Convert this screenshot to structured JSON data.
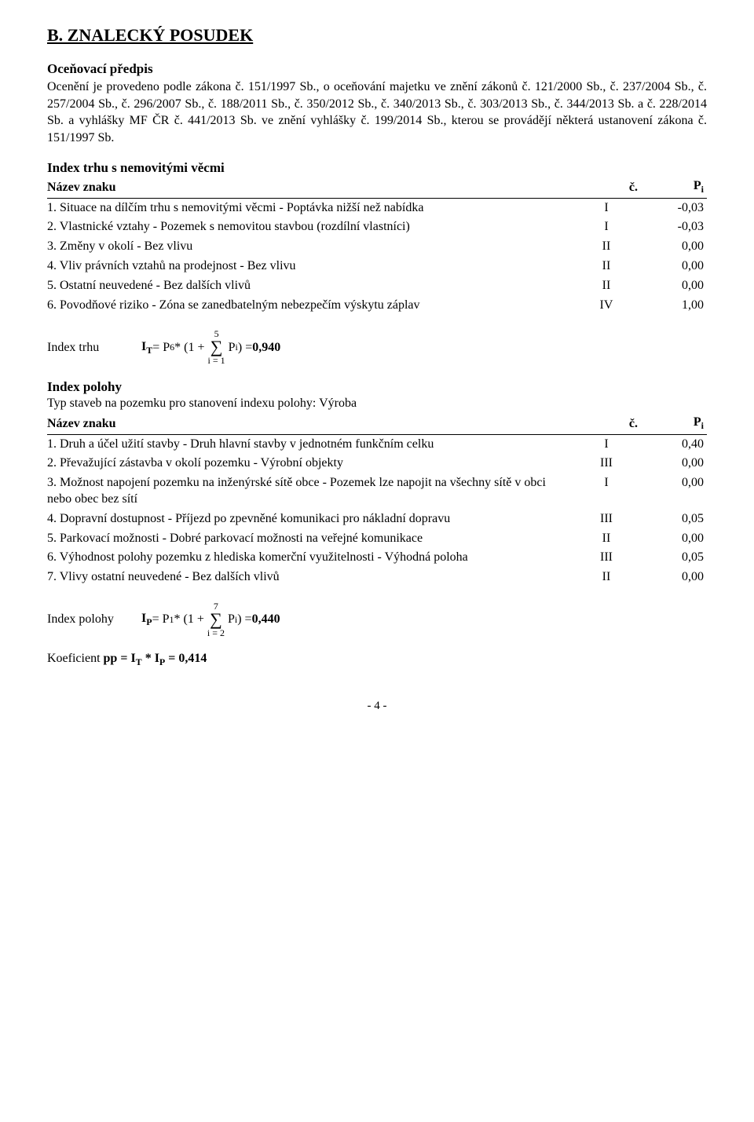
{
  "title": "B. ZNALECKÝ POSUDEK",
  "predpis_heading": "Oceňovací předpis",
  "predpis_text": "Ocenění je provedeno podle zákona č. 151/1997 Sb., o oceňování majetku ve znění zákonů č. 121/2000 Sb., č. 237/2004 Sb., č. 257/2004 Sb., č. 296/2007 Sb., č. 188/2011 Sb., č. 350/2012 Sb., č. 340/2013 Sb., č. 303/2013 Sb., č. 344/2013 Sb. a č. 228/2014 Sb. a vyhlášky MF ČR č. 441/2013 Sb. ve znění vyhlášky č. 199/2014 Sb., kterou se provádějí některá ustanovení zákona č. 151/1997 Sb.",
  "index_trhu_heading": "Index trhu s nemovitými věcmi",
  "table_header": {
    "name": "Název znaku",
    "c": "č.",
    "p": "Pi"
  },
  "trhu_rows": [
    {
      "name": "1. Situace na dílčím trhu s nemovitými věcmi - Poptávka nižší než nabídka",
      "c": "I",
      "p": "-0,03"
    },
    {
      "name": "2. Vlastnické vztahy - Pozemek s nemovitou stavbou (rozdílní vlastníci)",
      "c": "I",
      "p": "-0,03"
    },
    {
      "name": "3. Změny v okolí - Bez vlivu",
      "c": "II",
      "p": "0,00"
    },
    {
      "name": "4. Vliv právních vztahů na prodejnost - Bez vlivu",
      "c": "II",
      "p": "0,00"
    },
    {
      "name": "5. Ostatní neuvedené - Bez dalších vlivů",
      "c": "II",
      "p": "0,00"
    },
    {
      "name": "6. Povodňové riziko - Zóna se zanedbatelným nebezpečím výskytu záplav",
      "c": "IV",
      "p": "1,00"
    }
  ],
  "formula_trhu": {
    "label": "Index trhu",
    "prefix": "I",
    "prefix_sub": "T",
    "eq1": " = P",
    "p_sub": "6",
    "eq2": " * (1 + ",
    "sum_top": "5",
    "sum_bottom": "i = 1",
    "sum_body": " P",
    "sum_body_sub": "i",
    "eq3": ") = ",
    "result": "0,940"
  },
  "index_polohy_heading": "Index polohy",
  "typ_staveb_text": "Typ staveb na pozemku pro stanovení indexu polohy: Výroba",
  "polohy_rows": [
    {
      "name": "1. Druh a účel užití stavby - Druh hlavní stavby v jednotném funkčním celku",
      "c": "I",
      "p": "0,40"
    },
    {
      "name": "2. Převažující zástavba v okolí pozemku - Výrobní objekty",
      "c": "III",
      "p": "0,00"
    },
    {
      "name": "3. Možnost napojení pozemku na inženýrské sítě obce - Pozemek lze napojit na všechny sítě v obci nebo obec bez sítí",
      "c": "I",
      "p": "0,00"
    },
    {
      "name": "4. Dopravní dostupnost - Příjezd po zpevněné komunikaci pro nákladní dopravu",
      "c": "III",
      "p": "0,05"
    },
    {
      "name": "5. Parkovací možnosti - Dobré parkovací možnosti na veřejné komunikace",
      "c": "II",
      "p": "0,00"
    },
    {
      "name": "6. Výhodnost polohy pozemku z hlediska komerční využitelnosti - Výhodná poloha",
      "c": "III",
      "p": "0,05"
    },
    {
      "name": "7. Vlivy ostatní neuvedené - Bez dalších vlivů",
      "c": "II",
      "p": "0,00"
    }
  ],
  "formula_polohy": {
    "label": "Index polohy",
    "prefix": "I",
    "prefix_sub": "P",
    "eq1": " = P",
    "p_sub": "1",
    "eq2": " * (1 + ",
    "sum_top": "7",
    "sum_bottom": "i = 2",
    "sum_body": " P",
    "sum_body_sub": "i",
    "eq3": ") = ",
    "result": "0,440"
  },
  "koef": {
    "text1": "Koeficient ",
    "pp": "pp = I",
    "sub1": "T",
    "mid": " * I",
    "sub2": "P",
    "eq": " = 0,414"
  },
  "page_num": "- 4 -"
}
